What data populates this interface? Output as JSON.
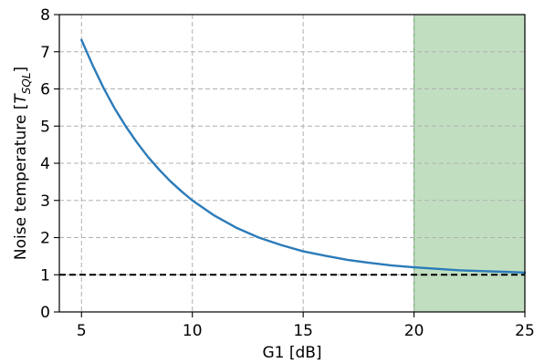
{
  "chart_data": {
    "type": "line",
    "title": "",
    "xlabel": "G1 [dB]",
    "ylabel_main": "Noise temperature [",
    "ylabel_symbol": "T",
    "ylabel_subscript": "SQL",
    "ylabel_close": "]",
    "xlim": [
      4,
      25
    ],
    "ylim": [
      0,
      8
    ],
    "x_ticks": [
      5,
      10,
      15,
      20,
      25
    ],
    "y_ticks": [
      0,
      1,
      2,
      3,
      4,
      5,
      6,
      7,
      8
    ],
    "x_tick_labels": [
      "5",
      "10",
      "15",
      "20",
      "25"
    ],
    "y_tick_labels": [
      "0",
      "1",
      "2",
      "3",
      "4",
      "5",
      "6",
      "7",
      "8"
    ],
    "grid": true,
    "grid_style": "dashed",
    "legend": "none",
    "series": [
      {
        "x": [
          5,
          5.5,
          6,
          6.5,
          7,
          7.5,
          8,
          8.5,
          9,
          9.5,
          10,
          11,
          12,
          13,
          14,
          15,
          16,
          17,
          18,
          19,
          20,
          21,
          22,
          23,
          24,
          25
        ],
        "y": [
          7.32,
          6.64,
          6.02,
          5.47,
          4.99,
          4.56,
          4.17,
          3.83,
          3.52,
          3.25,
          3.0,
          2.59,
          2.26,
          2.0,
          1.8,
          1.63,
          1.51,
          1.4,
          1.32,
          1.25,
          1.2,
          1.16,
          1.12,
          1.1,
          1.08,
          1.06
        ],
        "color": "#2b7bb9"
      }
    ],
    "reference_line": {
      "y": 1,
      "color": "#000000",
      "style": "dashed"
    },
    "shaded_region": {
      "x_start": 20,
      "x_end": 25,
      "color": "#c1dfc0",
      "edge_color": "#6fb36b"
    }
  }
}
